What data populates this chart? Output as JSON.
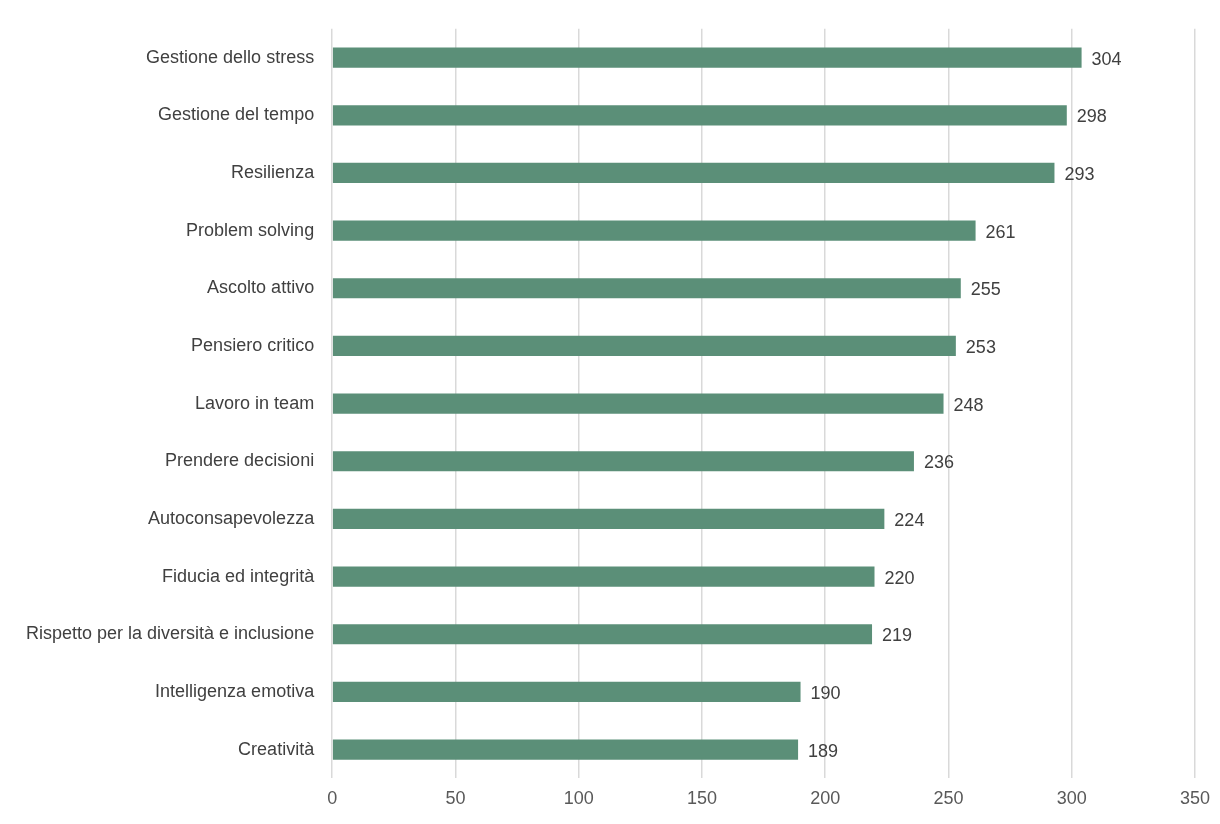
{
  "chart_data": {
    "type": "bar",
    "orientation": "horizontal",
    "categories": [
      "Gestione dello stress",
      "Gestione del tempo",
      "Resilienza",
      "Problem solving",
      "Ascolto attivo",
      "Pensiero critico",
      "Lavoro in team",
      "Prendere decisioni",
      "Autoconsapevolezza",
      "Fiducia ed integrità",
      "Rispetto per la diversità e inclusione",
      "Intelligenza emotiva",
      "Creatività"
    ],
    "values": [
      304,
      298,
      293,
      261,
      255,
      253,
      248,
      236,
      224,
      220,
      219,
      190,
      189
    ],
    "color": "#5b8f78",
    "xlim": [
      0,
      350
    ],
    "xticks": [
      0,
      50,
      100,
      150,
      200,
      250,
      300,
      350
    ],
    "grid": "x",
    "data_labels": true
  }
}
